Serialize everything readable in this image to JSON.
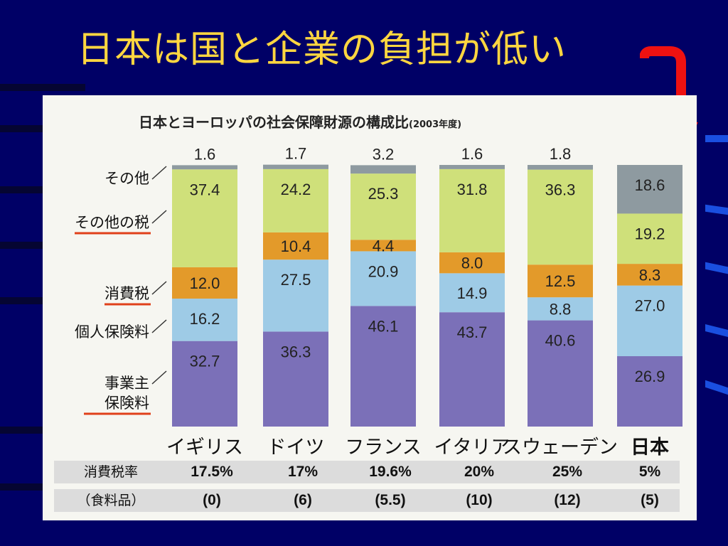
{
  "slide": {
    "title": "日本は国と企業の負担が低い"
  },
  "chart_data": {
    "type": "bar",
    "stacked": true,
    "percent_stacked": true,
    "title": "日本とヨーロッパの社会保障財源の構成比",
    "title_note": "(2003年度)",
    "categories": [
      "イギリス",
      "ドイツ",
      "フランス",
      "イタリア",
      "スウェーデン",
      "日本"
    ],
    "ylim": [
      0,
      100
    ],
    "grid": false,
    "series": [
      {
        "name": "事業主保険料",
        "color": "#7b70b8",
        "values": [
          32.7,
          36.3,
          46.1,
          43.7,
          40.6,
          26.9
        ]
      },
      {
        "name": "個人保険料",
        "color": "#9ecbe6",
        "values": [
          16.2,
          27.5,
          20.9,
          14.9,
          8.8,
          27.0
        ]
      },
      {
        "name": "消費税",
        "color": "#e39a2a",
        "values": [
          12.0,
          10.4,
          4.4,
          8.0,
          12.5,
          8.3
        ]
      },
      {
        "name": "その他の税",
        "color": "#cfe07a",
        "values": [
          37.4,
          24.2,
          25.3,
          31.8,
          36.3,
          19.2
        ]
      },
      {
        "name": "その他",
        "color": "#8e9aa0",
        "values": [
          1.6,
          1.7,
          3.2,
          1.6,
          1.8,
          18.6
        ]
      }
    ],
    "legend_labels": [
      {
        "text": "その他",
        "underline": false
      },
      {
        "text": "その他の税",
        "underline": true
      },
      {
        "text": "消費税",
        "underline": true
      },
      {
        "text": "個人保険料",
        "underline": false
      },
      {
        "text": "事業主保険料",
        "underline": true
      }
    ],
    "table": {
      "row1_label": "消費税率",
      "row1_values": [
        "17.5%",
        "17%",
        "19.6%",
        "20%",
        "25%",
        "5%"
      ],
      "row2_label": "（食料品）",
      "row2_values": [
        "(0)",
        "(6)",
        "(5.5)",
        "(10)",
        "(12)",
        "(5)"
      ]
    },
    "highlight_category": "日本",
    "accent_underline_color": "#e0401a",
    "arrow_color": "#ee1111"
  }
}
